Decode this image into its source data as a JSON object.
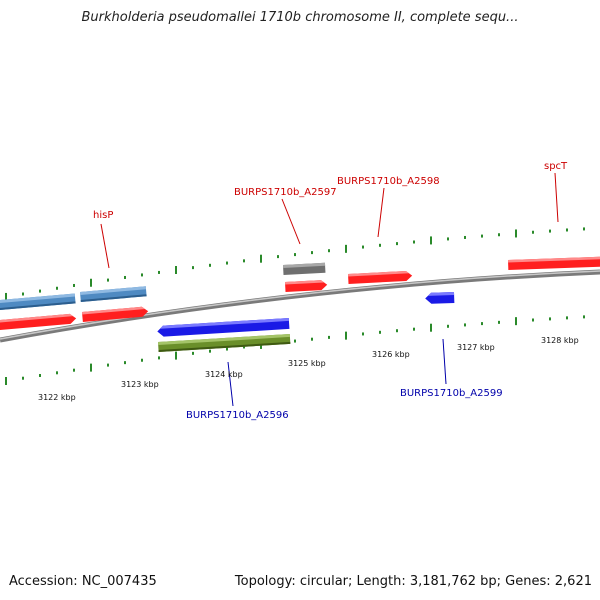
{
  "title": "Burkholderia pseudomallei 1710b chromosome II, complete sequ...",
  "footer": {
    "accession": "Accession: NC_007435",
    "summary": "Topology: circular; Length: 3,181,762 bp; Genes: 2,621"
  },
  "colors": {
    "forward_gene": "#ff2020",
    "reverse_gene": "#1f1fe0",
    "blue_gray": "#4f8ac2",
    "gray_gene": "#6f6f6f",
    "green_gene": "#6a8f2a",
    "backbone": "#8c8c8c",
    "tick": "#2a8a2a",
    "forward_label": "#cc0000",
    "reverse_label": "#0000aa"
  },
  "scale": {
    "upper_kbp_labels": [
      "3123 kbp",
      "3124 kbp",
      "3125 kbp",
      "3126 kbp",
      "3127 kbp",
      "3128 kbp"
    ],
    "lower_kbp_label": "3122 kbp"
  },
  "gene_labels": {
    "hisP": "hisP",
    "a2597": "BURPS1710b_A2597",
    "a2598": "BURPS1710b_A2598",
    "spcT": "spcT",
    "a2596": "BURPS1710b_A2596",
    "a2599": "BURPS1710b_A2599"
  }
}
